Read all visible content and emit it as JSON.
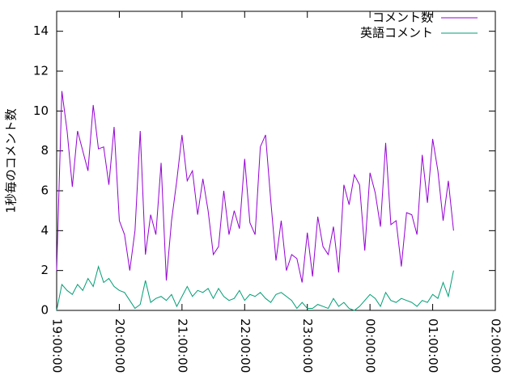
{
  "chart_data": {
    "type": "line",
    "ylabel": "1秒毎のコメント数",
    "x": [
      "19:00:00",
      "19:05:00",
      "19:10:00",
      "19:15:00",
      "19:20:00",
      "19:25:00",
      "19:30:00",
      "19:35:00",
      "19:40:00",
      "19:45:00",
      "19:50:00",
      "19:55:00",
      "20:00:00",
      "20:05:00",
      "20:10:00",
      "20:15:00",
      "20:20:00",
      "20:25:00",
      "20:30:00",
      "20:35:00",
      "20:40:00",
      "20:45:00",
      "20:50:00",
      "20:55:00",
      "21:00:00",
      "21:05:00",
      "21:10:00",
      "21:15:00",
      "21:20:00",
      "21:25:00",
      "21:30:00",
      "21:35:00",
      "21:40:00",
      "21:45:00",
      "21:50:00",
      "21:55:00",
      "22:00:00",
      "22:05:00",
      "22:10:00",
      "22:15:00",
      "22:20:00",
      "22:25:00",
      "22:30:00",
      "22:35:00",
      "22:40:00",
      "22:45:00",
      "22:50:00",
      "22:55:00",
      "23:00:00",
      "23:05:00",
      "23:10:00",
      "23:15:00",
      "23:20:00",
      "23:25:00",
      "23:30:00",
      "23:35:00",
      "23:40:00",
      "23:45:00",
      "23:50:00",
      "23:55:00",
      "00:00:00",
      "00:05:00",
      "00:10:00",
      "00:15:00",
      "00:20:00",
      "00:25:00",
      "00:30:00",
      "00:35:00",
      "00:40:00",
      "00:45:00",
      "00:50:00",
      "00:55:00",
      "01:00:00",
      "01:05:00",
      "01:10:00",
      "01:15:00",
      "01:20:00"
    ],
    "series": [
      {
        "name": "コメント数",
        "color": "#9400d3",
        "values": [
          2,
          11,
          9,
          6.2,
          9,
          8,
          7,
          10.3,
          8.1,
          8.2,
          6.3,
          9.2,
          4.5,
          3.8,
          2,
          4,
          9,
          2.8,
          4.8,
          3.8,
          7.4,
          1.5,
          4.5,
          6.5,
          8.8,
          6.5,
          7,
          4.8,
          6.6,
          5,
          2.8,
          3.2,
          6,
          3.8,
          5,
          4.1,
          7.6,
          4.4,
          3.8,
          8.2,
          8.8,
          5.5,
          2.5,
          4.5,
          2,
          2.8,
          2.6,
          1.4,
          3.9,
          1.7,
          4.7,
          3.2,
          2.8,
          4.2,
          1.9,
          6.3,
          5.3,
          6.8,
          6.3,
          3,
          6.9,
          5.9,
          4.2,
          8.4,
          4.3,
          4.5,
          2.2,
          4.9,
          4.8,
          3.8,
          7.8,
          5.4,
          8.6,
          7,
          4.5,
          6.5,
          4
        ]
      },
      {
        "name": "英語コメント",
        "color": "#009e73",
        "values": [
          0,
          1.3,
          1,
          0.8,
          1.3,
          1,
          1.6,
          1.2,
          2.2,
          1.4,
          1.6,
          1.2,
          1,
          0.9,
          0.5,
          0.1,
          0.3,
          1.5,
          0.4,
          0.6,
          0.7,
          0.5,
          0.8,
          0.2,
          0.7,
          1.2,
          0.7,
          1,
          0.9,
          1.1,
          0.6,
          1.1,
          0.7,
          0.5,
          0.6,
          1,
          0.5,
          0.8,
          0.7,
          0.9,
          0.6,
          0.4,
          0.8,
          0.9,
          0.7,
          0.5,
          0.1,
          0.4,
          0.1,
          0.1,
          0.3,
          0.2,
          0.1,
          0.6,
          0.2,
          0.4,
          0.1,
          0,
          0.2,
          0.5,
          0.8,
          0.6,
          0.2,
          0.9,
          0.5,
          0.4,
          0.6,
          0.5,
          0.4,
          0.2,
          0.5,
          0.4,
          0.8,
          0.6,
          1.4,
          0.7,
          2
        ]
      }
    ],
    "xlim": [
      "19:00:00",
      "02:00:00"
    ],
    "xticks": [
      "19:00:00",
      "20:00:00",
      "21:00:00",
      "22:00:00",
      "23:00:00",
      "00:00:00",
      "01:00:00",
      "02:00:00"
    ],
    "ylim": [
      0,
      15
    ],
    "yticks": [
      0,
      2,
      4,
      6,
      8,
      10,
      12,
      14
    ],
    "legend": "top-right"
  }
}
